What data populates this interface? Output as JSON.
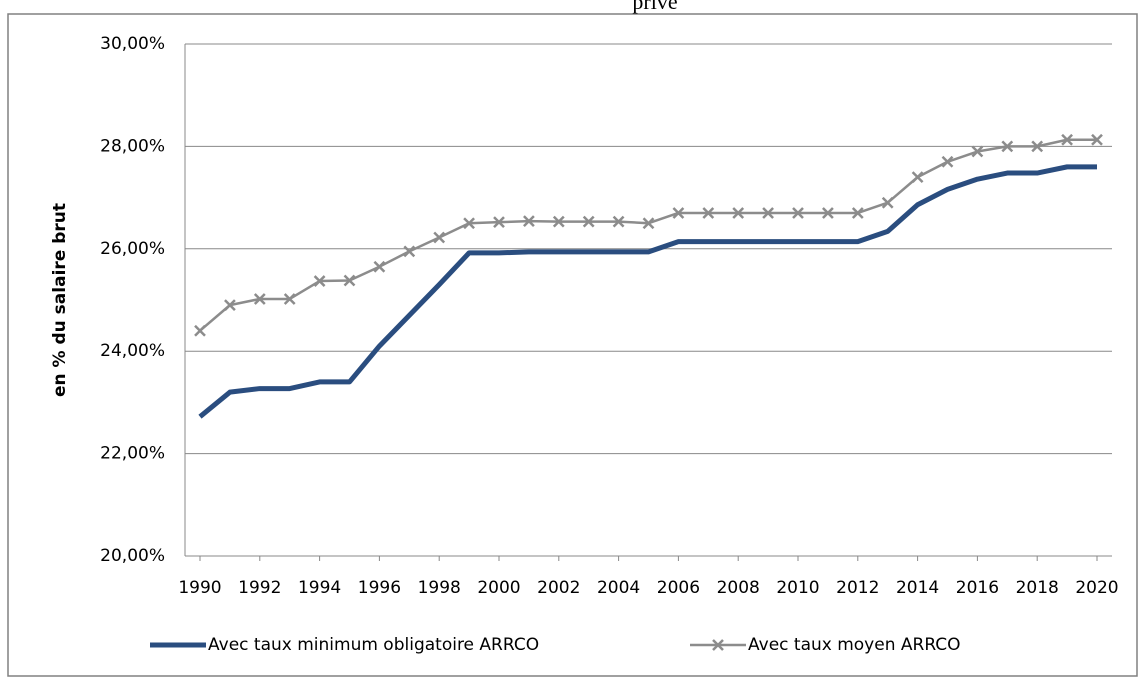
{
  "chart_data": {
    "type": "line",
    "title": "privé",
    "y_label": "en % du salaire brut",
    "x": [
      1990,
      1991,
      1992,
      1993,
      1994,
      1995,
      1996,
      1997,
      1998,
      1999,
      2000,
      2001,
      2002,
      2003,
      2004,
      2005,
      2006,
      2007,
      2008,
      2009,
      2010,
      2011,
      2012,
      2013,
      2014,
      2015,
      2016,
      2017,
      2018,
      2019,
      2020
    ],
    "series": [
      {
        "name": "Avec taux minimum obligatoire ARRCO",
        "color": "#2a4d7f",
        "values": [
          22.72,
          23.2,
          23.27,
          23.27,
          23.4,
          23.4,
          24.1,
          24.7,
          25.3,
          25.92,
          25.92,
          25.94,
          25.94,
          25.94,
          25.94,
          25.94,
          26.14,
          26.14,
          26.14,
          26.14,
          26.14,
          26.14,
          26.14,
          26.34,
          26.86,
          27.16,
          27.36,
          27.48,
          27.48,
          27.6,
          27.6
        ]
      },
      {
        "name": "Avec taux moyen ARRCO",
        "color": "#8c8c8c",
        "marker": "x",
        "values": [
          24.4,
          24.9,
          25.02,
          25.02,
          25.37,
          25.38,
          25.65,
          25.95,
          26.22,
          26.5,
          26.52,
          26.54,
          26.53,
          26.53,
          26.53,
          26.5,
          26.7,
          26.7,
          26.7,
          26.7,
          26.7,
          26.7,
          26.7,
          26.9,
          27.4,
          27.7,
          27.9,
          28.0,
          28.0,
          28.13,
          28.13
        ]
      }
    ],
    "xlim": [
      1990,
      2020
    ],
    "xticks": [
      1990,
      1992,
      1994,
      1996,
      1998,
      2000,
      2002,
      2004,
      2006,
      2008,
      2010,
      2012,
      2014,
      2016,
      2018,
      2020
    ],
    "ylim": [
      20,
      30
    ],
    "yticks": [
      {
        "value": 20,
        "label": "20,00%"
      },
      {
        "value": 22,
        "label": "22,00%"
      },
      {
        "value": 24,
        "label": "24,00%"
      },
      {
        "value": 26,
        "label": "26,00%"
      },
      {
        "value": 28,
        "label": "28,00%"
      },
      {
        "value": 30,
        "label": "30,00%"
      }
    ],
    "grid": true,
    "legend": "bottom"
  }
}
